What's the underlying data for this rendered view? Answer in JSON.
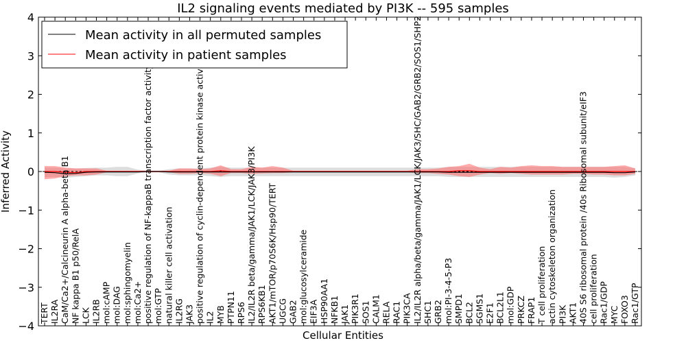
{
  "chart_data": {
    "type": "line",
    "title": "IL2 signaling events mediated by PI3K -- 595 samples",
    "xlabel": "Cellular Entities",
    "ylabel": "Inferred Activity",
    "ylim": [
      -4,
      4
    ],
    "yticks": [
      4,
      3,
      2,
      1,
      0,
      -1,
      -2,
      -3,
      -4
    ],
    "legend_position": "top-left",
    "colors": {
      "permuted": "#000000",
      "patient": "#ff0000",
      "permuted_band": "#bbbbbb",
      "patient_band": "#ff6666"
    },
    "categories": [
      "TERT",
      "IL2RA",
      "CaM/Ca2+/Calcineurin A alpha-beta B1",
      "NF kappa B1 p50/RelA",
      "LCK",
      "IL2RB",
      "mol:cAMP",
      "mol:DAG",
      "mol:sphingomyelin",
      "mol:Ca2+",
      "positive regulation of NF-kappaB transcription factor activity",
      "mol:GTP",
      "natural killer cell activation",
      "IL2RG",
      "JAK3",
      "positive regulation of cyclin-dependent protein kinase activity",
      "IL2",
      "MYB",
      "PTPN11",
      "RPS6",
      "IL2/IL2R beta/gamma/JAK1/LCK/JAK3/PI3K",
      "RPS6KB1",
      "AKT1/mTOR/p70S6K/Hsp90/TERT",
      "UGCG",
      "GAB2",
      "mol:glucosylceramide",
      "EIF3A",
      "HSP90AA1",
      "NFKB1",
      "JAK1",
      "PIK3R1",
      "SOS1",
      "CALM1",
      "RELA",
      "RAC1",
      "PIK3CA",
      "IL2/IL2R alpha/beta/gamma/JAK1/LCK/JAK3/SHC/GAB2/GRB2/SOS1/SHP2",
      "SHC1",
      "GRB2",
      "mol:PI-3-4-5-P3",
      "SMPD1",
      "BCL2",
      "SGMS1",
      "E2F1",
      "BCL2L1",
      "mol:GDP",
      "PRKCZ",
      "FRAP1",
      "T cell proliferation",
      "actin cytoskeleton organization",
      "PI3K",
      "AKT1",
      "40S S6 ribosomal protein /40s Ribosomal subunit/eIF3",
      "cell proliferation",
      "Rac1/GDP",
      "MYC",
      "FOXO3",
      "Rac1/GTP"
    ],
    "series": [
      {
        "name": "Mean activity in all permuted samples",
        "values": [
          -0.02,
          -0.03,
          -0.06,
          -0.05,
          -0.02,
          -0.01,
          -0.01,
          -0.01,
          -0.01,
          -0.01,
          0.0,
          0.0,
          -0.01,
          -0.01,
          -0.01,
          -0.01,
          -0.01,
          -0.01,
          -0.01,
          -0.01,
          -0.01,
          -0.01,
          -0.01,
          -0.01,
          -0.01,
          -0.01,
          -0.01,
          -0.01,
          -0.01,
          -0.01,
          -0.01,
          -0.01,
          -0.01,
          -0.01,
          -0.01,
          -0.01,
          -0.01,
          -0.01,
          -0.01,
          -0.02,
          -0.02,
          -0.02,
          -0.02,
          -0.02,
          -0.02,
          -0.02,
          -0.02,
          -0.02,
          -0.02,
          -0.02,
          -0.02,
          -0.02,
          -0.02,
          -0.02,
          -0.02,
          -0.03,
          -0.03,
          -0.01
        ],
        "lower": [
          -0.15,
          -0.14,
          -0.16,
          -0.14,
          -0.12,
          -0.1,
          -0.1,
          -0.12,
          -0.12,
          -0.05,
          -0.02,
          -0.02,
          -0.08,
          -0.1,
          -0.1,
          -0.1,
          -0.12,
          -0.14,
          -0.12,
          -0.12,
          -0.12,
          -0.12,
          -0.12,
          -0.12,
          -0.12,
          -0.12,
          -0.12,
          -0.12,
          -0.12,
          -0.12,
          -0.12,
          -0.12,
          -0.12,
          -0.12,
          -0.12,
          -0.12,
          -0.12,
          -0.12,
          -0.12,
          -0.14,
          -0.14,
          -0.14,
          -0.14,
          -0.14,
          -0.14,
          -0.14,
          -0.14,
          -0.14,
          -0.14,
          -0.14,
          -0.14,
          -0.14,
          -0.14,
          -0.14,
          -0.14,
          -0.16,
          -0.14,
          -0.1
        ],
        "upper": [
          0.1,
          0.1,
          0.08,
          0.08,
          0.09,
          0.1,
          0.1,
          0.12,
          0.12,
          0.05,
          0.02,
          0.02,
          0.06,
          0.08,
          0.08,
          0.08,
          0.1,
          0.12,
          0.1,
          0.1,
          0.1,
          0.1,
          0.1,
          0.1,
          0.1,
          0.1,
          0.1,
          0.1,
          0.1,
          0.1,
          0.1,
          0.1,
          0.1,
          0.1,
          0.1,
          0.1,
          0.1,
          0.1,
          0.1,
          0.12,
          0.12,
          0.12,
          0.12,
          0.12,
          0.12,
          0.12,
          0.12,
          0.12,
          0.12,
          0.12,
          0.12,
          0.12,
          0.12,
          0.12,
          0.12,
          0.12,
          0.12,
          0.08
        ]
      },
      {
        "name": "Mean activity in patient samples",
        "values": [
          0.0,
          0.0,
          -0.02,
          -0.03,
          0.0,
          0.0,
          0.0,
          0.0,
          0.0,
          0.0,
          0.0,
          0.0,
          0.0,
          0.0,
          0.0,
          0.0,
          0.0,
          0.02,
          0.0,
          0.0,
          0.0,
          0.0,
          0.0,
          0.0,
          0.0,
          0.0,
          0.0,
          0.0,
          0.0,
          0.0,
          0.0,
          0.0,
          0.0,
          0.0,
          0.0,
          0.0,
          0.0,
          0.0,
          0.0,
          0.0,
          0.02,
          0.02,
          0.0,
          0.0,
          0.0,
          0.0,
          0.0,
          0.0,
          0.0,
          0.0,
          0.0,
          0.0,
          0.0,
          0.0,
          0.0,
          0.0,
          0.0,
          0.0
        ],
        "lower": [
          -0.2,
          -0.18,
          -0.12,
          -0.1,
          -0.1,
          -0.08,
          -0.02,
          -0.02,
          -0.02,
          -0.02,
          -0.02,
          -0.02,
          -0.02,
          -0.06,
          -0.06,
          -0.04,
          -0.06,
          -0.12,
          -0.04,
          -0.04,
          -0.06,
          -0.05,
          -0.04,
          -0.04,
          -0.02,
          -0.02,
          -0.02,
          -0.02,
          -0.02,
          -0.02,
          -0.02,
          -0.02,
          -0.02,
          -0.02,
          -0.02,
          -0.02,
          -0.04,
          -0.04,
          -0.06,
          -0.08,
          -0.12,
          -0.14,
          -0.08,
          -0.04,
          -0.06,
          -0.04,
          -0.06,
          -0.08,
          -0.08,
          -0.08,
          -0.08,
          -0.06,
          -0.06,
          -0.08,
          -0.08,
          -0.1,
          -0.1,
          -0.06
        ],
        "upper": [
          0.14,
          0.14,
          0.1,
          0.08,
          0.08,
          0.08,
          0.02,
          0.02,
          0.02,
          0.02,
          0.02,
          0.02,
          0.02,
          0.08,
          0.08,
          0.06,
          0.08,
          0.16,
          0.06,
          0.06,
          0.12,
          0.1,
          0.14,
          0.1,
          0.02,
          0.02,
          0.02,
          0.02,
          0.02,
          0.02,
          0.02,
          0.02,
          0.02,
          0.02,
          0.02,
          0.02,
          0.06,
          0.06,
          0.08,
          0.12,
          0.14,
          0.2,
          0.1,
          0.06,
          0.12,
          0.1,
          0.14,
          0.16,
          0.14,
          0.14,
          0.12,
          0.12,
          0.12,
          0.12,
          0.12,
          0.14,
          0.16,
          0.08
        ]
      }
    ]
  }
}
